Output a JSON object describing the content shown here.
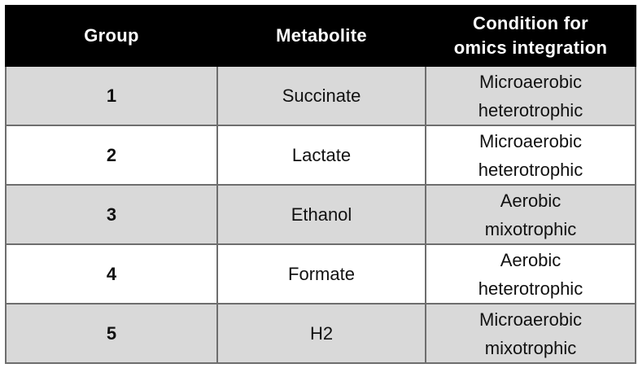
{
  "table": {
    "headers": {
      "group": "Group",
      "metabolite": "Metabolite",
      "condition_line1": "Condition for",
      "condition_line2": "omics integration"
    },
    "rows": [
      {
        "group": "1",
        "metabolite": "Succinate",
        "condition_line1": "Microaerobic",
        "condition_line2": "heterotrophic"
      },
      {
        "group": "2",
        "metabolite": "Lactate",
        "condition_line1": "Microaerobic",
        "condition_line2": "heterotrophic"
      },
      {
        "group": "3",
        "metabolite": "Ethanol",
        "condition_line1": "Aerobic",
        "condition_line2": "mixotrophic"
      },
      {
        "group": "4",
        "metabolite": "Formate",
        "condition_line1": "Aerobic",
        "condition_line2": "heterotrophic"
      },
      {
        "group": "5",
        "metabolite": "H2",
        "condition_line1": "Microaerobic",
        "condition_line2": "mixotrophic"
      }
    ]
  },
  "colors": {
    "header_bg": "#000000",
    "header_text": "#ffffff",
    "row_shaded": "#d9d9d9",
    "row_plain": "#ffffff",
    "border": "#6e6e6e"
  }
}
